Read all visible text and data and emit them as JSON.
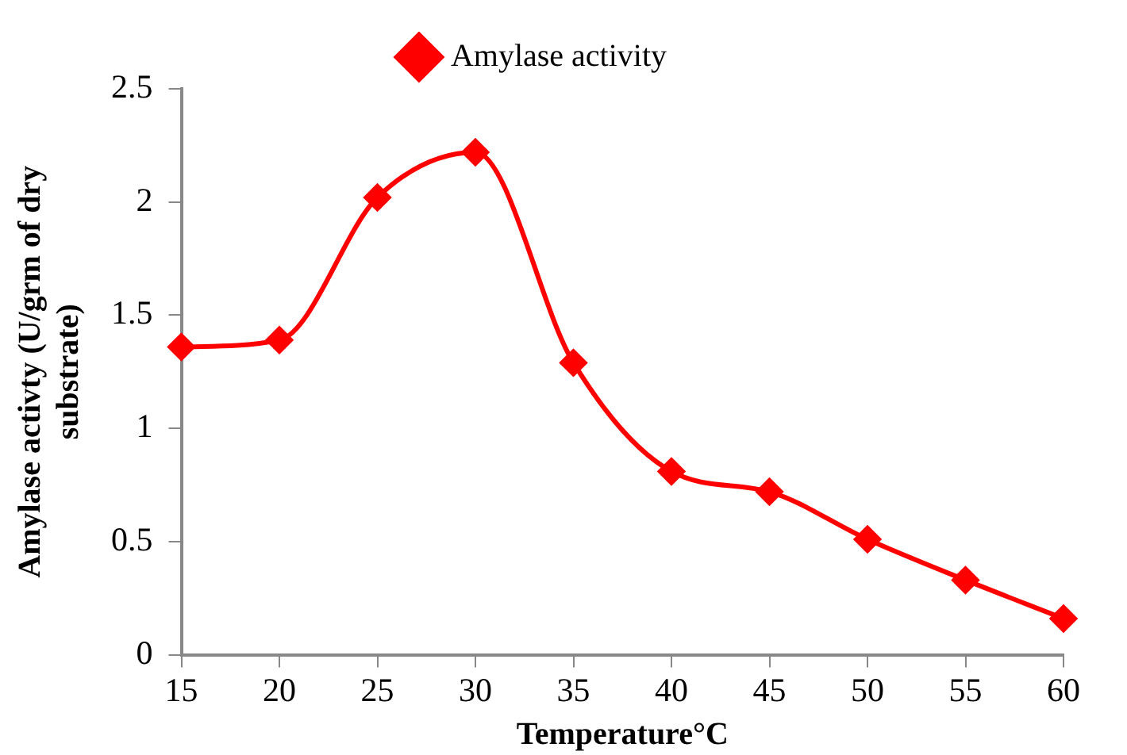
{
  "chart_data": {
    "type": "line",
    "xlabel": "Temperature°C",
    "ylabel": "Amylase activty (U/grm of dry substrate)",
    "categories": [
      "15",
      "20",
      "25",
      "30",
      "35",
      "40",
      "45",
      "50",
      "55",
      "60"
    ],
    "series": [
      {
        "name": "Amylase activity",
        "color": "#ff0000",
        "values": [
          1.36,
          1.39,
          2.02,
          2.22,
          1.29,
          0.81,
          0.72,
          0.51,
          0.33,
          0.16
        ]
      }
    ],
    "ylim": [
      0,
      2.5
    ],
    "yticks": [
      0,
      0.5,
      1,
      1.5,
      2,
      2.5
    ],
    "grid": false,
    "legend": "top",
    "marker": "diamond",
    "line_style": "solid"
  }
}
